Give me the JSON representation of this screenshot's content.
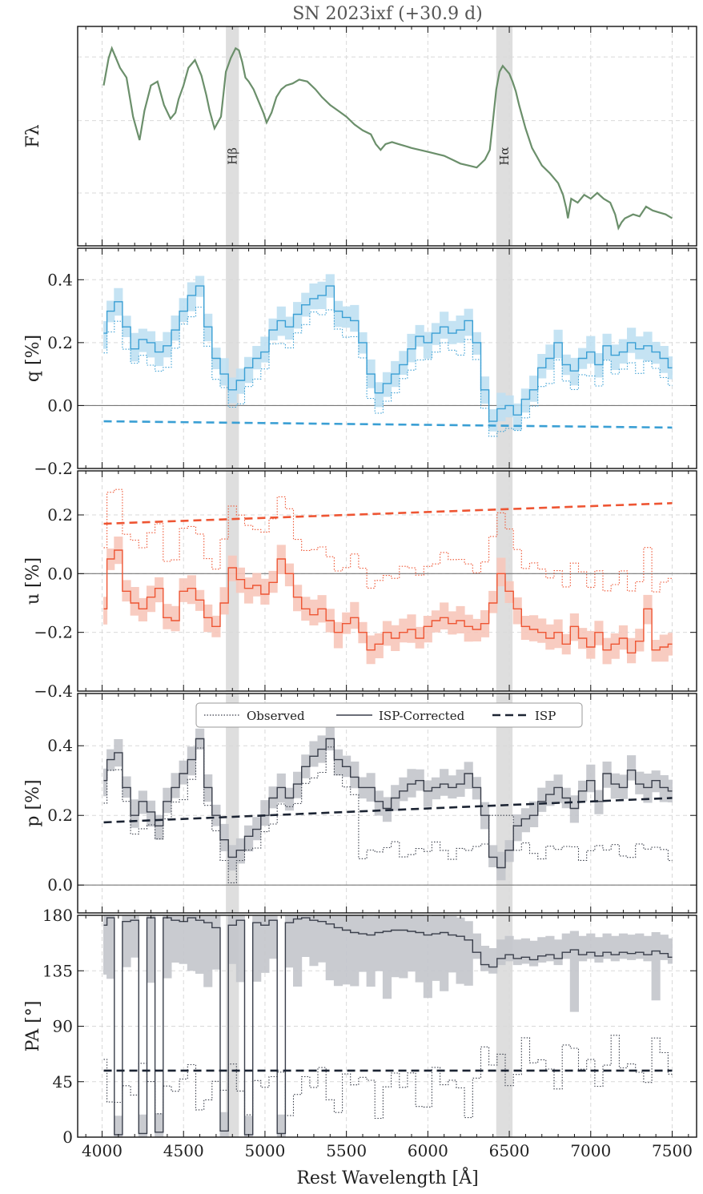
{
  "chart_data": {
    "type": "line",
    "title": "SN 2023ixf (+30.9 d)",
    "xlabel": "Rest Wavelength [Å]",
    "xlim": [
      3850,
      7650
    ],
    "x_ticks": [
      4000,
      4500,
      5000,
      5500,
      6000,
      6500,
      7000,
      7500
    ],
    "shaded_bands": [
      {
        "label": "Hβ",
        "range": [
          4760,
          4840
        ]
      },
      {
        "label": "Hα",
        "range": [
          6420,
          6520
        ]
      }
    ],
    "legend": {
      "placement": "top-center",
      "entries": [
        "Observed",
        "ISP-Corrected",
        "ISP"
      ]
    },
    "grid": true,
    "colors": {
      "flux": "#6b8f6b",
      "q": "#3a9fd4",
      "q_band": "#bfe0f2",
      "u": "#ee5533",
      "u_band": "#f8c7bb",
      "p": "#3a3f4b",
      "p_band": "#c4c6cc",
      "isp_dark": "#1c2433",
      "hline": "#777777",
      "band": "#d8d8d8"
    },
    "panels": [
      {
        "id": "flux",
        "ylabel": "Fλ",
        "ylim": [
          0,
          1
        ],
        "yticks": [],
        "series": [
          {
            "name": "",
            "style": "solid",
            "color": "#6b8f6b",
            "x": [
              4010,
              4040,
              4060,
              4080,
              4110,
              4150,
              4190,
              4230,
              4260,
              4300,
              4340,
              4380,
              4420,
              4450,
              4470,
              4500,
              4530,
              4570,
              4610,
              4640,
              4660,
              4690,
              4730,
              4760,
              4790,
              4820,
              4840,
              4860,
              4880,
              4900,
              4930,
              4960,
              4990,
              5010,
              5040,
              5070,
              5100,
              5130,
              5170,
              5210,
              5260,
              5310,
              5350,
              5400,
              5450,
              5500,
              5550,
              5600,
              5650,
              5680,
              5710,
              5740,
              5780,
              5820,
              5860,
              5900,
              5950,
              6000,
              6050,
              6100,
              6150,
              6200,
              6250,
              6300,
              6350,
              6380,
              6400,
              6420,
              6440,
              6460,
              6480,
              6500,
              6520,
              6540,
              6560,
              6600,
              6640,
              6700,
              6750,
              6800,
              6830,
              6850,
              6860,
              6880,
              6920,
              6960,
              7000,
              7040,
              7080,
              7120,
              7150,
              7170,
              7190,
              7210,
              7260,
              7300,
              7340,
              7380,
              7420,
              7460,
              7500
            ],
            "y": [
              0.78,
              0.92,
              0.97,
              0.93,
              0.87,
              0.82,
              0.62,
              0.5,
              0.65,
              0.78,
              0.8,
              0.68,
              0.61,
              0.64,
              0.71,
              0.78,
              0.87,
              0.91,
              0.83,
              0.73,
              0.65,
              0.56,
              0.62,
              0.85,
              0.92,
              0.97,
              0.96,
              0.9,
              0.82,
              0.8,
              0.76,
              0.7,
              0.64,
              0.59,
              0.64,
              0.72,
              0.76,
              0.78,
              0.79,
              0.81,
              0.8,
              0.76,
              0.72,
              0.68,
              0.65,
              0.62,
              0.58,
              0.55,
              0.53,
              0.48,
              0.45,
              0.48,
              0.49,
              0.48,
              0.47,
              0.46,
              0.45,
              0.44,
              0.43,
              0.42,
              0.4,
              0.38,
              0.37,
              0.36,
              0.4,
              0.45,
              0.6,
              0.76,
              0.85,
              0.88,
              0.86,
              0.84,
              0.8,
              0.75,
              0.68,
              0.56,
              0.46,
              0.37,
              0.33,
              0.28,
              0.22,
              0.15,
              0.1,
              0.2,
              0.18,
              0.22,
              0.2,
              0.23,
              0.2,
              0.18,
              0.12,
              0.05,
              0.08,
              0.1,
              0.12,
              0.11,
              0.16,
              0.14,
              0.13,
              0.12,
              0.1
            ]
          }
        ]
      },
      {
        "id": "q",
        "ylabel": "q [%]",
        "ylim": [
          -0.2,
          0.5
        ],
        "yticks": [
          [
            -0.2,
            "−0.2"
          ],
          [
            0.0,
            "0.0"
          ],
          [
            0.2,
            "0.2"
          ],
          [
            0.4,
            "0.4"
          ]
        ],
        "hline": 0,
        "isp": {
          "x": [
            4010,
            7500
          ],
          "y": [
            -0.05,
            -0.07
          ]
        },
        "corrected": {
          "x": [
            4010,
            4050,
            4100,
            4150,
            4200,
            4250,
            4300,
            4350,
            4400,
            4450,
            4500,
            4550,
            4600,
            4650,
            4700,
            4750,
            4800,
            4850,
            4900,
            4950,
            5000,
            5050,
            5100,
            5150,
            5200,
            5250,
            5300,
            5350,
            5400,
            5450,
            5500,
            5550,
            5600,
            5650,
            5700,
            5750,
            5800,
            5850,
            5900,
            5950,
            6000,
            6050,
            6100,
            6150,
            6200,
            6250,
            6300,
            6350,
            6400,
            6450,
            6500,
            6550,
            6600,
            6650,
            6700,
            6750,
            6800,
            6850,
            6900,
            6950,
            7000,
            7050,
            7100,
            7150,
            7200,
            7250,
            7300,
            7350,
            7400,
            7450,
            7500
          ],
          "y": [
            0.23,
            0.3,
            0.33,
            0.25,
            0.18,
            0.21,
            0.2,
            0.17,
            0.19,
            0.24,
            0.3,
            0.35,
            0.38,
            0.25,
            0.15,
            0.1,
            0.05,
            0.08,
            0.12,
            0.15,
            0.17,
            0.24,
            0.27,
            0.25,
            0.29,
            0.32,
            0.34,
            0.35,
            0.38,
            0.3,
            0.28,
            0.27,
            0.2,
            0.1,
            0.04,
            0.07,
            0.1,
            0.13,
            0.18,
            0.22,
            0.2,
            0.23,
            0.25,
            0.23,
            0.24,
            0.27,
            0.2,
            0.05,
            -0.05,
            -0.01,
            0.0,
            -0.03,
            0.02,
            0.05,
            0.12,
            0.15,
            0.2,
            0.13,
            0.11,
            0.15,
            0.17,
            0.13,
            0.19,
            0.16,
            0.17,
            0.2,
            0.18,
            0.19,
            0.17,
            0.15,
            0.12
          ]
        },
        "observed": {
          "y_offset": -0.06
        }
      },
      {
        "id": "u",
        "ylabel": "u [%]",
        "ylim": [
          -0.4,
          0.35
        ],
        "yticks": [
          [
            -0.4,
            "−0.4"
          ],
          [
            -0.2,
            "−0.2"
          ],
          [
            0.0,
            "0.0"
          ],
          [
            0.2,
            "0.2"
          ]
        ],
        "hline": 0,
        "isp": {
          "x": [
            4010,
            7500
          ],
          "y": [
            0.17,
            0.24
          ]
        },
        "corrected": {
          "x": [
            4010,
            4050,
            4100,
            4150,
            4200,
            4250,
            4300,
            4350,
            4400,
            4450,
            4500,
            4550,
            4600,
            4650,
            4700,
            4750,
            4800,
            4850,
            4900,
            4950,
            5000,
            5050,
            5100,
            5150,
            5200,
            5250,
            5300,
            5350,
            5400,
            5450,
            5500,
            5550,
            5600,
            5650,
            5700,
            5750,
            5800,
            5850,
            5900,
            5950,
            6000,
            6050,
            6100,
            6150,
            6200,
            6250,
            6300,
            6350,
            6400,
            6450,
            6500,
            6550,
            6600,
            6650,
            6700,
            6750,
            6800,
            6850,
            6900,
            6950,
            7000,
            7050,
            7100,
            7150,
            7200,
            7250,
            7300,
            7350,
            7400,
            7450,
            7500
          ],
          "y": [
            -0.12,
            0.05,
            0.08,
            -0.06,
            -0.1,
            -0.12,
            -0.08,
            -0.05,
            -0.15,
            -0.16,
            -0.06,
            -0.05,
            -0.09,
            -0.15,
            -0.18,
            -0.1,
            0.02,
            -0.02,
            -0.05,
            -0.04,
            -0.07,
            -0.03,
            0.05,
            0.0,
            -0.08,
            -0.12,
            -0.14,
            -0.12,
            -0.16,
            -0.2,
            -0.17,
            -0.15,
            -0.2,
            -0.26,
            -0.24,
            -0.2,
            -0.22,
            -0.2,
            -0.19,
            -0.22,
            -0.18,
            -0.16,
            -0.15,
            -0.17,
            -0.16,
            -0.18,
            -0.19,
            -0.17,
            -0.1,
            0.0,
            -0.06,
            -0.12,
            -0.18,
            -0.19,
            -0.2,
            -0.22,
            -0.2,
            -0.24,
            -0.18,
            -0.22,
            -0.25,
            -0.2,
            -0.26,
            -0.24,
            -0.22,
            -0.27,
            -0.23,
            -0.12,
            -0.26,
            -0.25,
            -0.24
          ]
        },
        "observed": {
          "y_offset": 0.21
        }
      },
      {
        "id": "p",
        "ylabel": "p [%]",
        "ylim": [
          -0.08,
          0.55
        ],
        "yticks": [
          [
            0.0,
            "0.0"
          ],
          [
            0.2,
            "0.2"
          ],
          [
            0.4,
            "0.4"
          ]
        ],
        "hline": 0,
        "isp": {
          "x": [
            4010,
            7500
          ],
          "y": [
            0.18,
            0.25
          ]
        },
        "corrected": {
          "x": [
            4010,
            4050,
            4100,
            4150,
            4200,
            4250,
            4300,
            4350,
            4400,
            4450,
            4500,
            4550,
            4600,
            4650,
            4700,
            4750,
            4800,
            4850,
            4900,
            4950,
            5000,
            5050,
            5100,
            5150,
            5200,
            5250,
            5300,
            5350,
            5400,
            5450,
            5500,
            5550,
            5600,
            5650,
            5700,
            5750,
            5800,
            5850,
            5900,
            5950,
            6000,
            6050,
            6100,
            6150,
            6200,
            6250,
            6300,
            6350,
            6400,
            6450,
            6500,
            6550,
            6600,
            6650,
            6700,
            6750,
            6800,
            6850,
            6900,
            6950,
            7000,
            7050,
            7100,
            7150,
            7200,
            7250,
            7300,
            7350,
            7400,
            7450,
            7500
          ],
          "y": [
            0.3,
            0.36,
            0.38,
            0.28,
            0.2,
            0.24,
            0.21,
            0.17,
            0.24,
            0.28,
            0.32,
            0.36,
            0.42,
            0.28,
            0.2,
            0.13,
            0.08,
            0.1,
            0.14,
            0.16,
            0.2,
            0.25,
            0.28,
            0.25,
            0.29,
            0.34,
            0.37,
            0.39,
            0.42,
            0.36,
            0.34,
            0.31,
            0.28,
            0.28,
            0.24,
            0.22,
            0.25,
            0.27,
            0.29,
            0.3,
            0.27,
            0.28,
            0.29,
            0.28,
            0.29,
            0.32,
            0.28,
            0.2,
            0.08,
            0.05,
            0.1,
            0.17,
            0.19,
            0.2,
            0.24,
            0.26,
            0.28,
            0.25,
            0.22,
            0.27,
            0.3,
            0.24,
            0.32,
            0.29,
            0.28,
            0.33,
            0.29,
            0.28,
            0.3,
            0.28,
            0.27
          ]
        },
        "observed_shape": "falls to ~0.1 beyond 5600 Å"
      },
      {
        "id": "pa",
        "ylabel": "PA [°]",
        "ylim": [
          0,
          180
        ],
        "yticks": [
          [
            0,
            "0"
          ],
          [
            45,
            "45"
          ],
          [
            90,
            "90"
          ],
          [
            135,
            "135"
          ],
          [
            180,
            "180"
          ]
        ],
        "isp": {
          "x": [
            4010,
            7500
          ],
          "y": [
            54,
            54
          ]
        },
        "corrected": {
          "x": [
            4010,
            4050,
            4100,
            4150,
            4200,
            4250,
            4300,
            4350,
            4400,
            4450,
            4500,
            4550,
            4600,
            4650,
            4700,
            4750,
            4800,
            4850,
            4900,
            4950,
            5000,
            5050,
            5100,
            5150,
            5200,
            5250,
            5300,
            5350,
            5400,
            5450,
            5500,
            5550,
            5600,
            5650,
            5700,
            5750,
            5800,
            5850,
            5900,
            5950,
            6000,
            6050,
            6100,
            6150,
            6200,
            6250,
            6300,
            6350,
            6400,
            6450,
            6500,
            6550,
            6600,
            6650,
            6700,
            6750,
            6800,
            6850,
            6900,
            6950,
            7000,
            7050,
            7100,
            7150,
            7200,
            7250,
            7300,
            7350,
            7400,
            7450,
            7500
          ],
          "y": [
            172,
            178,
            2,
            175,
            176,
            3,
            178,
            4,
            178,
            176,
            175,
            178,
            176,
            174,
            170,
            5,
            172,
            176,
            2,
            174,
            172,
            176,
            3,
            174,
            177,
            178,
            176,
            175,
            173,
            170,
            168,
            166,
            165,
            164,
            166,
            167,
            168,
            168,
            167,
            166,
            164,
            165,
            166,
            164,
            163,
            160,
            150,
            140,
            138,
            145,
            148,
            145,
            146,
            144,
            147,
            148,
            145,
            150,
            152,
            148,
            150,
            147,
            150,
            148,
            150,
            149,
            150,
            148,
            151,
            149,
            146
          ]
        },
        "observed_shape": "mostly 10–70°, ISP constant at 54°"
      }
    ]
  }
}
